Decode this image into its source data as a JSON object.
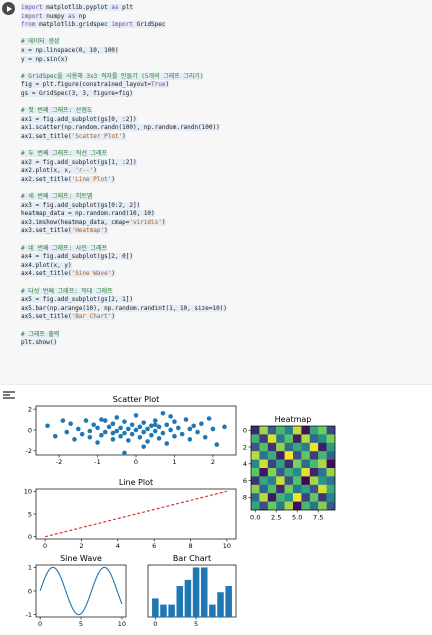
{
  "notebook": {
    "code_lines": [
      {
        "text": "import matplotlib.pyplot as plt",
        "kind": "code"
      },
      {
        "text": "import numpy as np",
        "kind": "code"
      },
      {
        "text": "from matplotlib.gridspec import GridSpec",
        "kind": "code"
      },
      {
        "text": "",
        "kind": "blank"
      },
      {
        "text": "# 데이터 생성",
        "kind": "comment"
      },
      {
        "text": "x = np.linspace(0, 10, 100)",
        "kind": "code"
      },
      {
        "text": "y = np.sin(x)",
        "kind": "code"
      },
      {
        "text": "",
        "kind": "blank"
      },
      {
        "text": "# GridSpec을 사용해 3x3 격자를 만들기 (5개의 그래프 그리기)",
        "kind": "comment"
      },
      {
        "text": "fig = plt.figure(constrained_layout=True)",
        "kind": "code"
      },
      {
        "text": "gs = GridSpec(3, 3, figure=fig)",
        "kind": "code"
      },
      {
        "text": "",
        "kind": "blank"
      },
      {
        "text": "# 첫 번째 그래프: 산점도",
        "kind": "comment"
      },
      {
        "text": "ax1 = fig.add_subplot(gs[0, :2])",
        "kind": "code"
      },
      {
        "text": "ax1.scatter(np.random.randn(100), np.random.randn(100))",
        "kind": "code"
      },
      {
        "text": "ax1.set_title('Scatter Plot')",
        "kind": "code"
      },
      {
        "text": "",
        "kind": "blank"
      },
      {
        "text": "# 두 번째 그래프: 직선 그래프",
        "kind": "comment"
      },
      {
        "text": "ax2 = fig.add_subplot(gs[1, :2])",
        "kind": "code"
      },
      {
        "text": "ax2.plot(x, x, 'r--')",
        "kind": "code"
      },
      {
        "text": "ax2.set_title('Line Plot')",
        "kind": "code"
      },
      {
        "text": "",
        "kind": "blank"
      },
      {
        "text": "# 세 번째 그래프: 히트맵",
        "kind": "comment"
      },
      {
        "text": "ax3 = fig.add_subplot(gs[0:2, 2])",
        "kind": "code"
      },
      {
        "text": "heatmap_data = np.random.rand(10, 10)",
        "kind": "code"
      },
      {
        "text": "ax3.imshow(heatmap_data, cmap='viridis')",
        "kind": "code"
      },
      {
        "text": "ax3.set_title('Heatmap')",
        "kind": "code"
      },
      {
        "text": "",
        "kind": "blank"
      },
      {
        "text": "# 네 번째 그래프: 사인 그래프",
        "kind": "comment"
      },
      {
        "text": "ax4 = fig.add_subplot(gs[2, 0])",
        "kind": "code"
      },
      {
        "text": "ax4.plot(x, y)",
        "kind": "code"
      },
      {
        "text": "ax4.set_title('Sine Wave')",
        "kind": "code"
      },
      {
        "text": "",
        "kind": "blank"
      },
      {
        "text": "# 다섯 번째 그래프: 막대 그래프",
        "kind": "comment"
      },
      {
        "text": "ax5 = fig.add_subplot(gs[2, 1])",
        "kind": "code"
      },
      {
        "text": "ax5.bar(np.arange(10), np.random.randint(1, 10, size=10))",
        "kind": "code"
      },
      {
        "text": "ax5.set_title('Bar Chart')",
        "kind": "code"
      },
      {
        "text": "",
        "kind": "blank"
      },
      {
        "text": "# 그래프 출력",
        "kind": "comment"
      },
      {
        "text": "plt.show()",
        "kind": "code"
      }
    ]
  },
  "colors": {
    "scatter": "#1f77b4",
    "line": "#d62728",
    "sine": "#1f77b4",
    "bar": "#1f77b4"
  },
  "chart_data": [
    {
      "type": "scatter",
      "title": "Scatter Plot",
      "xlim": [
        -2.6,
        2.6
      ],
      "ylim": [
        -2.4,
        2.3
      ],
      "x_ticks": [
        "-2",
        "-1",
        "0",
        "1",
        "2"
      ],
      "y_ticks": [
        "2",
        "0",
        "-2"
      ],
      "points": [
        [
          -2.3,
          0.4
        ],
        [
          -2.1,
          -0.6
        ],
        [
          -1.8,
          -0.2
        ],
        [
          -1.7,
          0.6
        ],
        [
          -1.6,
          -0.9
        ],
        [
          -1.5,
          0.1
        ],
        [
          -1.4,
          -0.4
        ],
        [
          -1.3,
          0.9
        ],
        [
          -1.2,
          -0.1
        ],
        [
          -1.1,
          0.5
        ],
        [
          -1.0,
          -1.2
        ],
        [
          -1.0,
          0.2
        ],
        [
          -0.9,
          -0.5
        ],
        [
          -0.8,
          0.9
        ],
        [
          -0.8,
          -0.2
        ],
        [
          -0.7,
          0.3
        ],
        [
          -0.6,
          -0.9
        ],
        [
          -0.6,
          0.6
        ],
        [
          -0.5,
          -0.1
        ],
        [
          -0.5,
          1.2
        ],
        [
          -0.4,
          0.2
        ],
        [
          -0.4,
          -0.6
        ],
        [
          -0.3,
          0.8
        ],
        [
          -0.3,
          -0.3
        ],
        [
          -0.2,
          0.1
        ],
        [
          -0.2,
          -1.0
        ],
        [
          -0.1,
          0.5
        ],
        [
          -0.1,
          -0.4
        ],
        [
          0.0,
          0.0
        ],
        [
          0.0,
          1.4
        ],
        [
          0.1,
          -0.7
        ],
        [
          0.1,
          0.3
        ],
        [
          0.2,
          -0.2
        ],
        [
          0.2,
          0.7
        ],
        [
          0.3,
          -1.1
        ],
        [
          0.3,
          0.1
        ],
        [
          0.4,
          0.4
        ],
        [
          0.4,
          -0.5
        ],
        [
          0.5,
          0.9
        ],
        [
          0.5,
          -0.1
        ],
        [
          0.6,
          -0.8
        ],
        [
          0.6,
          0.3
        ],
        [
          0.7,
          1.6
        ],
        [
          0.7,
          -0.3
        ],
        [
          0.8,
          0.5
        ],
        [
          0.8,
          -1.3
        ],
        [
          0.9,
          0.0
        ],
        [
          1.0,
          -0.6
        ],
        [
          1.0,
          0.8
        ],
        [
          1.1,
          0.2
        ],
        [
          1.2,
          -0.4
        ],
        [
          1.3,
          1.0
        ],
        [
          1.4,
          -0.9
        ],
        [
          1.5,
          0.4
        ],
        [
          1.6,
          -0.2
        ],
        [
          1.7,
          0.6
        ],
        [
          1.8,
          -0.7
        ],
        [
          2.0,
          0.1
        ],
        [
          2.1,
          -1.4
        ],
        [
          2.3,
          0.3
        ],
        [
          -0.3,
          -2.2
        ],
        [
          0.9,
          1.3
        ],
        [
          -1.9,
          0.9
        ],
        [
          1.9,
          1.1
        ],
        [
          0.2,
          -1.6
        ],
        [
          -0.9,
          1.0
        ],
        [
          1.4,
          0.1
        ],
        [
          -1.2,
          -0.7
        ],
        [
          0.5,
          0.5
        ],
        [
          -0.6,
          -0.3
        ]
      ]
    },
    {
      "type": "line",
      "title": "Line Plot",
      "xlim": [
        -0.5,
        10.5
      ],
      "ylim": [
        -0.5,
        10.5
      ],
      "x_ticks": [
        "0",
        "2",
        "4",
        "6",
        "8",
        "10"
      ],
      "y_ticks": [
        "10",
        "5",
        "0"
      ],
      "x": [
        0,
        10
      ],
      "y": [
        0,
        10
      ]
    },
    {
      "type": "heatmap",
      "title": "Heatmap",
      "x_ticks": [
        "0.0",
        "2.5",
        "5.0",
        "7.5"
      ],
      "y_ticks": [
        "0",
        "2",
        "4",
        "6",
        "8"
      ],
      "cmap": "viridis",
      "values": [
        [
          0.12,
          0.85,
          0.3,
          0.67,
          0.45,
          0.91,
          0.05,
          0.58,
          0.77,
          0.22
        ],
        [
          0.64,
          0.18,
          0.95,
          0.4,
          0.72,
          0.1,
          0.88,
          0.33,
          0.51,
          0.79
        ],
        [
          0.27,
          0.7,
          0.15,
          0.83,
          0.36,
          0.6,
          0.42,
          0.97,
          0.08,
          0.55
        ],
        [
          0.9,
          0.38,
          0.62,
          0.09,
          0.99,
          0.25,
          0.74,
          0.19,
          0.66,
          0.31
        ],
        [
          0.47,
          0.93,
          0.21,
          0.56,
          0.14,
          0.8,
          0.35,
          0.68,
          0.87,
          0.03
        ],
        [
          0.73,
          0.06,
          0.81,
          0.29,
          0.63,
          0.48,
          0.96,
          0.11,
          0.39,
          0.84
        ],
        [
          0.16,
          0.59,
          0.44,
          0.92,
          0.24,
          0.71,
          0.02,
          0.86,
          0.53,
          0.37
        ],
        [
          0.82,
          0.32,
          0.69,
          0.13,
          0.78,
          0.41,
          0.57,
          0.26,
          0.94,
          0.61
        ],
        [
          0.35,
          0.89,
          0.07,
          0.65,
          0.5,
          0.98,
          0.2,
          0.75,
          0.17,
          0.46
        ],
        [
          0.58,
          0.23,
          0.76,
          0.43,
          0.87,
          0.04,
          0.67,
          0.39,
          0.81,
          0.28
        ]
      ]
    },
    {
      "type": "line",
      "title": "Sine Wave",
      "xlim": [
        -0.5,
        10.5
      ],
      "ylim": [
        -1.1,
        1.1
      ],
      "x_ticks": [
        "0",
        "5",
        "10"
      ],
      "y_ticks": [
        "1",
        "0",
        "-1"
      ],
      "function": "sin",
      "x_range": [
        0,
        10
      ],
      "samples": 100
    },
    {
      "type": "bar",
      "title": "Bar Chart",
      "categories": [
        0,
        1,
        2,
        3,
        4,
        5,
        6,
        7,
        8,
        9
      ],
      "values": [
        3,
        2,
        2,
        5,
        6,
        8,
        8,
        2,
        4,
        5
      ],
      "xlim": [
        -0.9,
        9.9
      ],
      "ylim": [
        0,
        8.4
      ],
      "x_ticks": [
        "0",
        "5"
      ]
    }
  ]
}
